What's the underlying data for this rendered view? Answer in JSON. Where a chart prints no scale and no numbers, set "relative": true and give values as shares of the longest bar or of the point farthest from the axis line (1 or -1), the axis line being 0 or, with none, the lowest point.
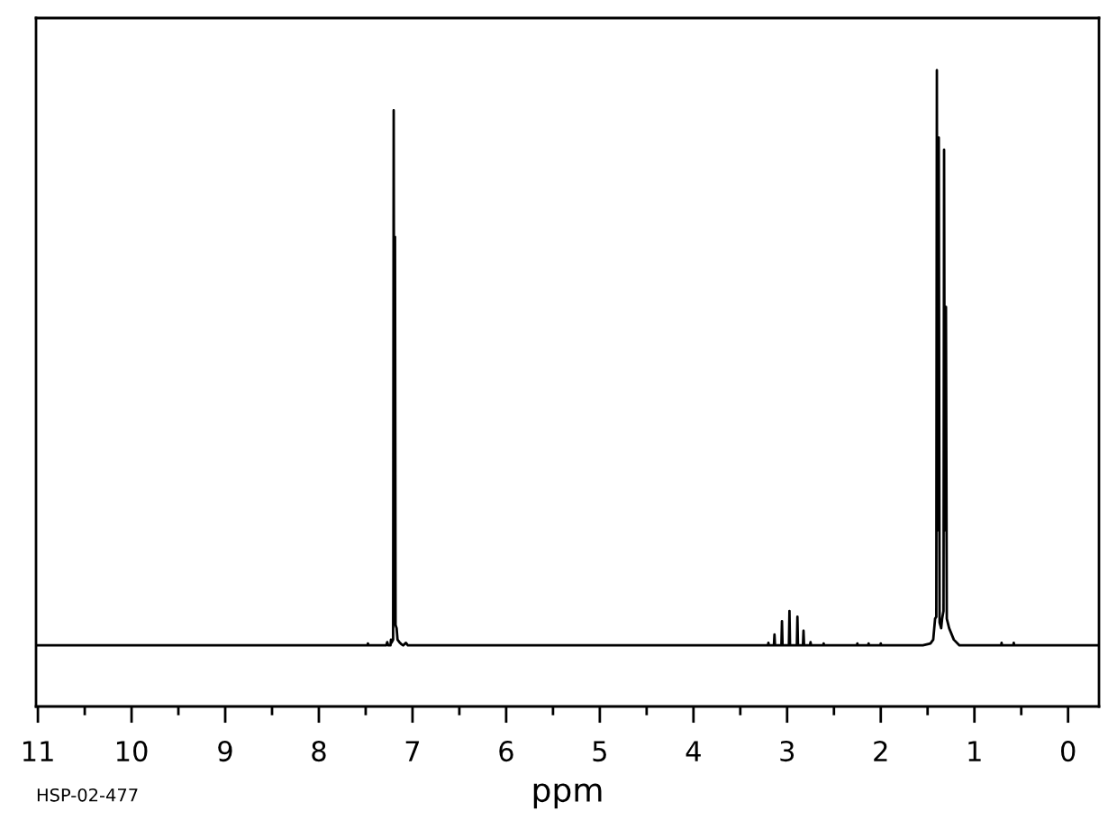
{
  "chart_data": {
    "type": "line",
    "relative": true,
    "xlabel": "ppm",
    "tick_labels": "x",
    "annotations": [
      "HSP-02-477"
    ],
    "xlim": [
      11.02,
      -0.33
    ],
    "xticks": [
      11,
      {
        "value": 10.5,
        "label": null
      },
      10,
      {
        "value": 9.5,
        "label": null
      },
      9,
      {
        "value": 8.5,
        "label": null
      },
      8,
      {
        "value": 7.5,
        "label": null
      },
      7,
      {
        "value": 6.5,
        "label": null
      },
      6,
      {
        "value": 5.5,
        "label": null
      },
      5,
      {
        "value": 4.5,
        "label": null
      },
      4,
      {
        "value": 3.5,
        "label": null
      },
      3,
      {
        "value": 2.5,
        "label": null
      },
      2,
      {
        "value": 1.5,
        "label": null
      },
      1,
      {
        "value": 0.5,
        "label": null
      },
      0
    ],
    "x": [
      11.02,
      7.48,
      7.476,
      7.47,
      7.28,
      7.27,
      7.26,
      7.235,
      7.23,
      7.225,
      7.207,
      7.201,
      7.195,
      7.187,
      7.181,
      7.17,
      7.16,
      7.14,
      7.12,
      7.1,
      7.07,
      7.05,
      3.25,
      3.205,
      3.2,
      3.195,
      3.141,
      3.135,
      3.129,
      3.061,
      3.055,
      3.049,
      2.981,
      2.975,
      2.969,
      2.896,
      2.89,
      2.884,
      2.831,
      2.825,
      2.819,
      2.756,
      2.75,
      2.744,
      2.615,
      2.61,
      2.605,
      2.255,
      2.25,
      2.245,
      2.135,
      2.13,
      2.125,
      2.005,
      2.0,
      1.995,
      1.55,
      1.47,
      1.44,
      1.42,
      1.407,
      1.401,
      1.395,
      1.381,
      1.372,
      1.355,
      1.345,
      1.33,
      1.324,
      1.316,
      1.304,
      1.295,
      1.27,
      1.22,
      1.16,
      0.715,
      0.71,
      0.705,
      0.585,
      0.58,
      0.575,
      -0.33
    ],
    "series": [
      {
        "color": "#000000",
        "values": [
          0.096,
          0.096,
          0.099,
          0.096,
          0.096,
          0.101,
          0.096,
          0.096,
          0.105,
          0.1,
          0.105,
          0.937,
          0.367,
          0.738,
          0.128,
          0.123,
          0.105,
          0.101,
          0.098,
          0.096,
          0.1,
          0.096,
          0.096,
          0.096,
          0.1,
          0.096,
          0.096,
          0.113,
          0.096,
          0.096,
          0.134,
          0.096,
          0.096,
          0.15,
          0.096,
          0.096,
          0.141,
          0.096,
          0.096,
          0.119,
          0.096,
          0.096,
          0.101,
          0.096,
          0.096,
          0.099,
          0.096,
          0.096,
          0.099,
          0.096,
          0.096,
          0.099,
          0.096,
          0.096,
          0.099,
          0.096,
          0.096,
          0.099,
          0.105,
          0.138,
          0.141,
          1,
          0.277,
          0.894,
          0.132,
          0.123,
          0.138,
          0.15,
          0.875,
          0.277,
          0.628,
          0.138,
          0.123,
          0.105,
          0.096,
          0.096,
          0.1,
          0.096,
          0.096,
          0.1,
          0.096,
          0.096
        ]
      }
    ]
  }
}
